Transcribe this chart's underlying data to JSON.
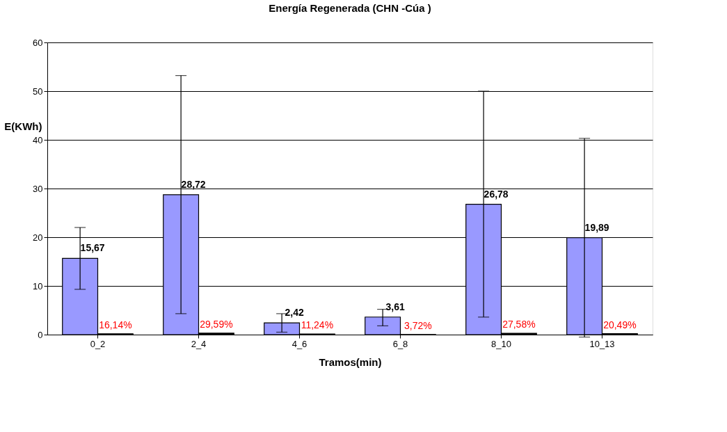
{
  "chart_data": {
    "type": "bar",
    "title": "Energía Regenerada        (CHN  -Cúa  )",
    "xlabel": "Tramos(min)",
    "ylabel": "E(KWh)",
    "categories": [
      "0_2",
      "2_4",
      "4_6",
      "6_8",
      "8_10",
      "10_13"
    ],
    "series": [
      {
        "color": "#9999ff",
        "values": [
          15.67,
          28.72,
          2.42,
          3.61,
          26.78,
          19.89
        ],
        "value_labels": [
          "15,67",
          "28,72",
          "2,42",
          "3,61",
          "26,78",
          "19,89"
        ],
        "errors": [
          [
            9.3,
            22.0
          ],
          [
            4.3,
            53.2
          ],
          [
            0.5,
            4.3
          ],
          [
            1.8,
            5.2
          ],
          [
            3.6,
            50.0
          ],
          [
            -0.5,
            40.3
          ]
        ]
      },
      {
        "color": "#000000",
        "values": [
          0.1614,
          0.2959,
          0.1124,
          0.0372,
          0.2758,
          0.2049
        ],
        "value_labels": [
          "16,14%",
          "29,59%",
          "11,24%",
          "3,72%",
          "27,58%",
          "20,49%"
        ]
      }
    ],
    "ylim": [
      0,
      60
    ],
    "yticks": [
      0,
      10,
      20,
      30,
      40,
      50,
      60
    ],
    "grid": "y",
    "legend": false
  }
}
